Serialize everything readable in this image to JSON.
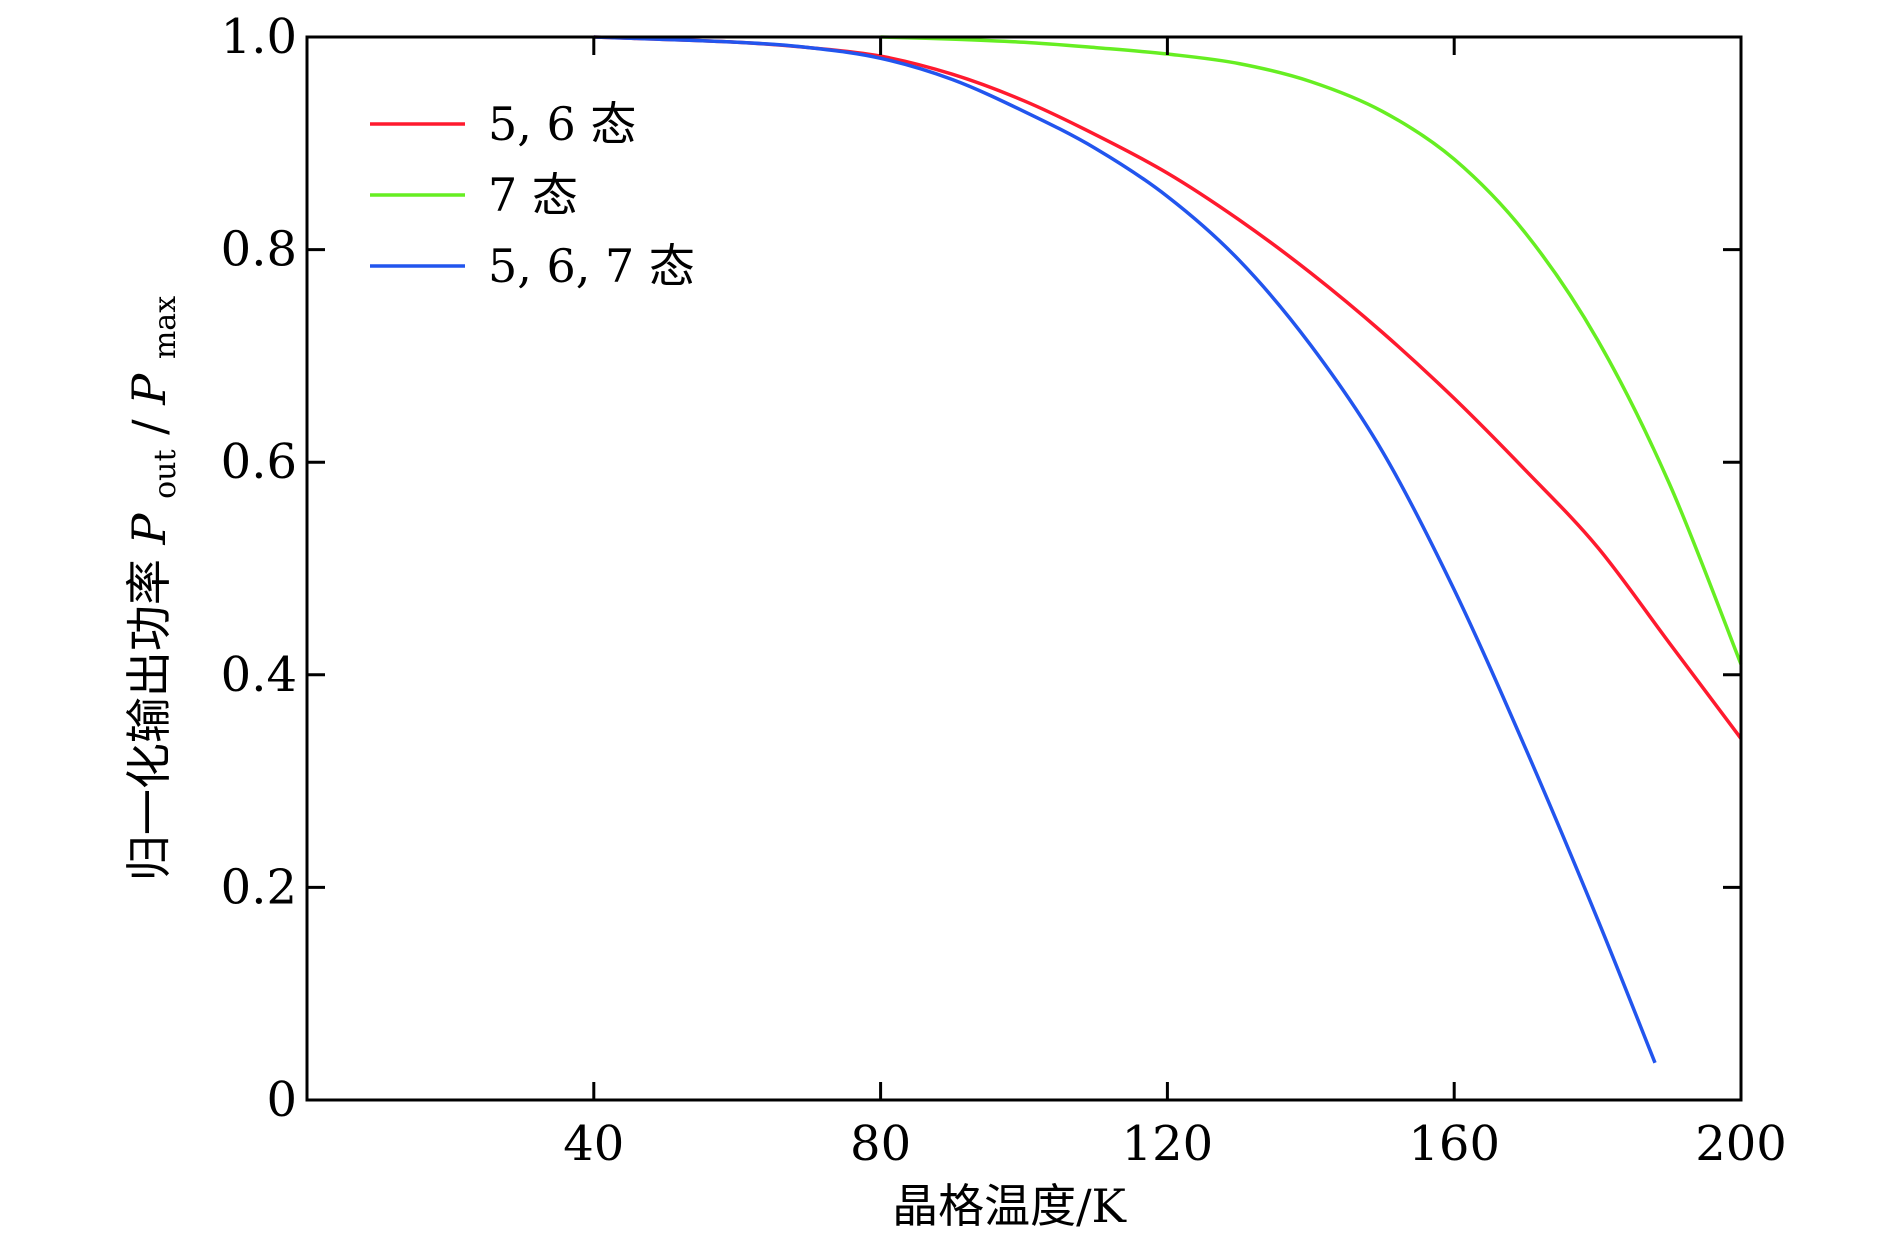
{
  "chart_data": {
    "type": "line",
    "title": "",
    "xlabel": "晶格温度/K",
    "ylabel": {
      "prefix": "归一化输出功率 ",
      "p1": "P",
      "sub1": "out",
      "slash": "/",
      "p2": "P",
      "sub2": "max"
    },
    "xlim": [
      0,
      200
    ],
    "ylim": [
      0,
      1.0
    ],
    "x_ticks": [
      40,
      80,
      120,
      160,
      200
    ],
    "x_tick_labels": [
      "40",
      "80",
      "120",
      "160",
      "200"
    ],
    "y_ticks": [
      0,
      0.2,
      0.4,
      0.6,
      0.8,
      1.0
    ],
    "y_tick_labels": [
      "0",
      "0.2",
      "0.4",
      "0.6",
      "0.8",
      "1.0"
    ],
    "grid": false,
    "legend_position": "top-left",
    "series": [
      {
        "name": "5, 6 态",
        "color": "#ff1a2e",
        "x": [
          40,
          60,
          70,
          80,
          90,
          100,
          110,
          120,
          130,
          140,
          150,
          160,
          170,
          180,
          190,
          200
        ],
        "y": [
          1.0,
          0.995,
          0.99,
          0.982,
          0.965,
          0.94,
          0.908,
          0.872,
          0.828,
          0.778,
          0.722,
          0.66,
          0.592,
          0.52,
          0.43,
          0.34
        ]
      },
      {
        "name": "7 态",
        "color": "#66ee22",
        "x": [
          80,
          90,
          100,
          110,
          120,
          130,
          140,
          150,
          160,
          170,
          180,
          190,
          200
        ],
        "y": [
          1.0,
          0.998,
          0.995,
          0.99,
          0.984,
          0.975,
          0.958,
          0.93,
          0.885,
          0.815,
          0.715,
          0.58,
          0.41
        ]
      },
      {
        "name": "5, 6, 7 态",
        "color": "#2255ee",
        "x": [
          40,
          60,
          70,
          80,
          90,
          100,
          110,
          120,
          130,
          140,
          150,
          160,
          170,
          180,
          188
        ],
        "y": [
          1.0,
          0.995,
          0.99,
          0.98,
          0.96,
          0.93,
          0.895,
          0.85,
          0.79,
          0.71,
          0.61,
          0.48,
          0.33,
          0.17,
          0.035
        ]
      }
    ]
  }
}
